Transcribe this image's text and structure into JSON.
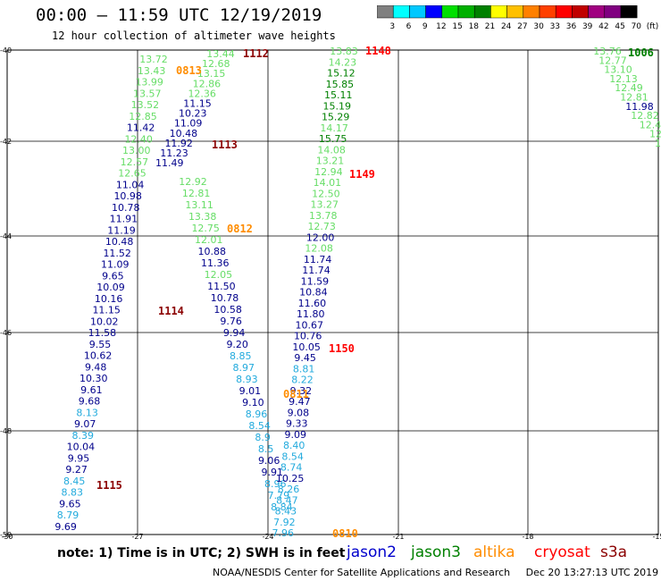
{
  "header": {
    "title": "00:00 – 11:59 UTC 12/19/2019",
    "subtitle": "12 hour collection of altimeter wave heights"
  },
  "colorbar": {
    "labels": [
      "3",
      "6",
      "9",
      "12",
      "15",
      "18",
      "21",
      "24",
      "27",
      "30",
      "33",
      "36",
      "39",
      "42",
      "45",
      "70",
      "(ft)"
    ],
    "colors": [
      "#808080",
      "#00ffff",
      "#00c8ff",
      "#0000ff",
      "#00e000",
      "#00b000",
      "#008000",
      "#ffff00",
      "#ffc000",
      "#ff8000",
      "#ff4000",
      "#ff0000",
      "#c00000",
      "#a00080",
      "#800080",
      "#000000"
    ]
  },
  "axes": {
    "lat_labels": [
      "-40",
      "-42",
      "-44",
      "-46",
      "-48",
      "-50"
    ],
    "lon_labels": [
      "-30",
      "-27",
      "-24",
      "-21",
      "-18",
      "-15"
    ]
  },
  "tracks": [
    {
      "id": "t1112",
      "pass_label": "1112",
      "label_color": "#8b0000",
      "points": [
        {
          "v": "13.44",
          "c": "#66dd66"
        },
        {
          "v": "12.68",
          "c": "#66dd66"
        },
        {
          "v": "13.15",
          "c": "#66dd66"
        },
        {
          "v": "12.86",
          "c": "#66dd66"
        },
        {
          "v": "12.36",
          "c": "#66dd66"
        },
        {
          "v": "11.15",
          "c": "#00008b"
        },
        {
          "v": "10.23",
          "c": "#00008b"
        },
        {
          "v": "11.09",
          "c": "#00008b"
        },
        {
          "v": "10.48",
          "c": "#00008b"
        },
        {
          "v": "11.92",
          "c": "#00008b"
        },
        {
          "v": "11.23",
          "c": "#00008b"
        },
        {
          "v": "11.49",
          "c": "#00008b"
        }
      ]
    },
    {
      "id": "t0813",
      "pass_label": "0813",
      "label_color": "#ff8c00",
      "points": [
        {
          "v": "13.72",
          "c": "#66dd66"
        },
        {
          "v": "13.43",
          "c": "#66dd66"
        },
        {
          "v": "13.99",
          "c": "#66dd66"
        },
        {
          "v": "13.57",
          "c": "#66dd66"
        },
        {
          "v": "13.52",
          "c": "#66dd66"
        },
        {
          "v": "12.85",
          "c": "#66dd66"
        },
        {
          "v": "11.42",
          "c": "#00008b"
        },
        {
          "v": "12.40",
          "c": "#66dd66"
        },
        {
          "v": "13.00",
          "c": "#66dd66"
        },
        {
          "v": "12.57",
          "c": "#66dd66"
        },
        {
          "v": "12.65",
          "c": "#66dd66"
        },
        {
          "v": "11.04",
          "c": "#00008b"
        },
        {
          "v": "10.98",
          "c": "#00008b"
        },
        {
          "v": "10.78",
          "c": "#00008b"
        },
        {
          "v": "11.91",
          "c": "#00008b"
        },
        {
          "v": "11.19",
          "c": "#00008b"
        },
        {
          "v": "10.48",
          "c": "#00008b"
        },
        {
          "v": "11.52",
          "c": "#00008b"
        },
        {
          "v": "11.09",
          "c": "#00008b"
        },
        {
          "v": "9.65",
          "c": "#00008b"
        },
        {
          "v": "10.09",
          "c": "#00008b"
        },
        {
          "v": "10.16",
          "c": "#00008b"
        },
        {
          "v": "11.15",
          "c": "#00008b"
        },
        {
          "v": "10.02",
          "c": "#00008b"
        },
        {
          "v": "11.58",
          "c": "#00008b"
        },
        {
          "v": "9.55",
          "c": "#00008b"
        },
        {
          "v": "10.62",
          "c": "#00008b"
        },
        {
          "v": "9.48",
          "c": "#00008b"
        },
        {
          "v": "10.30",
          "c": "#00008b"
        },
        {
          "v": "9.61",
          "c": "#00008b"
        },
        {
          "v": "9.68",
          "c": "#00008b"
        },
        {
          "v": "8.13",
          "c": "#22aadd"
        },
        {
          "v": "9.07",
          "c": "#00008b"
        },
        {
          "v": "8.39",
          "c": "#22aadd"
        },
        {
          "v": "10.04",
          "c": "#00008b"
        },
        {
          "v": "9.95",
          "c": "#00008b"
        },
        {
          "v": "9.27",
          "c": "#00008b"
        },
        {
          "v": "8.45",
          "c": "#22aadd"
        },
        {
          "v": "8.83",
          "c": "#22aadd"
        },
        {
          "v": "9.65",
          "c": "#00008b"
        },
        {
          "v": "8.79",
          "c": "#22aadd"
        },
        {
          "v": "9.69",
          "c": "#00008b"
        }
      ]
    },
    {
      "id": "t0812",
      "pass_label": "0812",
      "label_color": "#ff8c00",
      "points": [
        {
          "v": "12.92",
          "c": "#66dd66"
        },
        {
          "v": "12.81",
          "c": "#66dd66"
        },
        {
          "v": "13.11",
          "c": "#66dd66"
        },
        {
          "v": "13.38",
          "c": "#66dd66"
        },
        {
          "v": "12.75",
          "c": "#66dd66"
        },
        {
          "v": "12.01",
          "c": "#66dd66"
        },
        {
          "v": "10.88",
          "c": "#00008b"
        },
        {
          "v": "11.36",
          "c": "#00008b"
        },
        {
          "v": "12.05",
          "c": "#66dd66"
        },
        {
          "v": "11.50",
          "c": "#00008b"
        },
        {
          "v": "10.78",
          "c": "#00008b"
        },
        {
          "v": "10.58",
          "c": "#00008b"
        },
        {
          "v": "9.76",
          "c": "#00008b"
        },
        {
          "v": "9.94",
          "c": "#00008b"
        },
        {
          "v": "9.20",
          "c": "#00008b"
        },
        {
          "v": "8.85",
          "c": "#22aadd"
        },
        {
          "v": "8.97",
          "c": "#22aadd"
        },
        {
          "v": "8.93",
          "c": "#22aadd"
        },
        {
          "v": "9.01",
          "c": "#00008b"
        },
        {
          "v": "9.10",
          "c": "#00008b"
        },
        {
          "v": "8.96",
          "c": "#22aadd"
        },
        {
          "v": "8.54",
          "c": "#22aadd"
        },
        {
          "v": "8.9",
          "c": "#22aadd"
        },
        {
          "v": "8.5",
          "c": "#22aadd"
        },
        {
          "v": "9.06",
          "c": "#00008b"
        },
        {
          "v": "9.91",
          "c": "#00008b"
        },
        {
          "v": "8.96",
          "c": "#22aadd"
        },
        {
          "v": "7.79",
          "c": "#22aadd"
        },
        {
          "v": "8.84",
          "c": "#22aadd"
        }
      ]
    },
    {
      "id": "t1148",
      "pass_label": "1148",
      "label_color": "#ff0000",
      "points": [
        {
          "v": "13.83",
          "c": "#66dd66"
        },
        {
          "v": "14.23",
          "c": "#66dd66"
        },
        {
          "v": "15.12",
          "c": "#008000"
        },
        {
          "v": "15.85",
          "c": "#008000"
        },
        {
          "v": "15.11",
          "c": "#008000"
        },
        {
          "v": "15.19",
          "c": "#008000"
        },
        {
          "v": "15.29",
          "c": "#008000"
        },
        {
          "v": "14.17",
          "c": "#66dd66"
        },
        {
          "v": "15.75",
          "c": "#008000"
        },
        {
          "v": "14.08",
          "c": "#66dd66"
        },
        {
          "v": "13.21",
          "c": "#66dd66"
        },
        {
          "v": "12.94",
          "c": "#66dd66"
        },
        {
          "v": "14.01",
          "c": "#66dd66"
        },
        {
          "v": "12.50",
          "c": "#66dd66"
        },
        {
          "v": "13.27",
          "c": "#66dd66"
        },
        {
          "v": "13.78",
          "c": "#66dd66"
        },
        {
          "v": "12.73",
          "c": "#66dd66"
        },
        {
          "v": "12.00",
          "c": "#00008b"
        },
        {
          "v": "12.08",
          "c": "#66dd66"
        },
        {
          "v": "11.74",
          "c": "#00008b"
        },
        {
          "v": "11.74",
          "c": "#00008b"
        },
        {
          "v": "11.59",
          "c": "#00008b"
        },
        {
          "v": "10.84",
          "c": "#00008b"
        },
        {
          "v": "11.60",
          "c": "#00008b"
        },
        {
          "v": "11.80",
          "c": "#00008b"
        },
        {
          "v": "10.67",
          "c": "#00008b"
        },
        {
          "v": "10.76",
          "c": "#00008b"
        },
        {
          "v": "10.05",
          "c": "#00008b"
        },
        {
          "v": "9.45",
          "c": "#00008b"
        },
        {
          "v": "8.81",
          "c": "#22aadd"
        },
        {
          "v": "8.22",
          "c": "#22aadd"
        },
        {
          "v": "9.32",
          "c": "#00008b"
        },
        {
          "v": "9.47",
          "c": "#00008b"
        },
        {
          "v": "9.08",
          "c": "#00008b"
        },
        {
          "v": "9.33",
          "c": "#00008b"
        },
        {
          "v": "9.09",
          "c": "#00008b"
        },
        {
          "v": "8.40",
          "c": "#22aadd"
        },
        {
          "v": "8.54",
          "c": "#22aadd"
        },
        {
          "v": "8.74",
          "c": "#22aadd"
        },
        {
          "v": "10.25",
          "c": "#00008b"
        },
        {
          "v": "8.26",
          "c": "#22aadd"
        },
        {
          "v": "8.47",
          "c": "#22aadd"
        },
        {
          "v": "8.43",
          "c": "#22aadd"
        },
        {
          "v": "7.92",
          "c": "#22aadd"
        },
        {
          "v": "7.96",
          "c": "#22aadd"
        }
      ]
    },
    {
      "id": "t1006",
      "pass_label": "1006",
      "label_color": "#008000",
      "points": [
        {
          "v": "13.76",
          "c": "#66dd66"
        },
        {
          "v": "12.77",
          "c": "#66dd66"
        },
        {
          "v": "13.10",
          "c": "#66dd66"
        },
        {
          "v": "12.13",
          "c": "#66dd66"
        },
        {
          "v": "12.49",
          "c": "#66dd66"
        },
        {
          "v": "12.81",
          "c": "#66dd66"
        },
        {
          "v": "11.98",
          "c": "#00008b"
        },
        {
          "v": "12.82",
          "c": "#66dd66"
        },
        {
          "v": "12.4",
          "c": "#66dd66"
        },
        {
          "v": "12",
          "c": "#66dd66"
        },
        {
          "v": "12",
          "c": "#66dd66"
        }
      ]
    }
  ],
  "extra_pass_labels": [
    {
      "id": "l1113",
      "text": "1113",
      "color": "#8b0000"
    },
    {
      "id": "l1149",
      "text": "1149",
      "color": "#ff0000"
    },
    {
      "id": "l1114",
      "text": "1114",
      "color": "#8b0000"
    },
    {
      "id": "l1150",
      "text": "1150",
      "color": "#ff0000"
    },
    {
      "id": "l0811",
      "text": "0811",
      "color": "#ff8c00"
    },
    {
      "id": "l1115",
      "text": "1115",
      "color": "#8b0000"
    },
    {
      "id": "l0810",
      "text": "0810",
      "color": "#ff8c00"
    }
  ],
  "footer": {
    "note": "note: 1) Time is in UTC; 2) SWH is in feet",
    "satellites": [
      {
        "name": "jason2",
        "color": "#0000cc"
      },
      {
        "name": "jason3",
        "color": "#008000"
      },
      {
        "name": "altika",
        "color": "#ff8c00"
      },
      {
        "name": "cryosat",
        "color": "#ff0000"
      },
      {
        "name": "s3a",
        "color": "#8b0000"
      }
    ],
    "credit": "NOAA/NESDIS Center for Satellite Applications and Research     Dec 20 13:27:13 UTC 2019"
  }
}
